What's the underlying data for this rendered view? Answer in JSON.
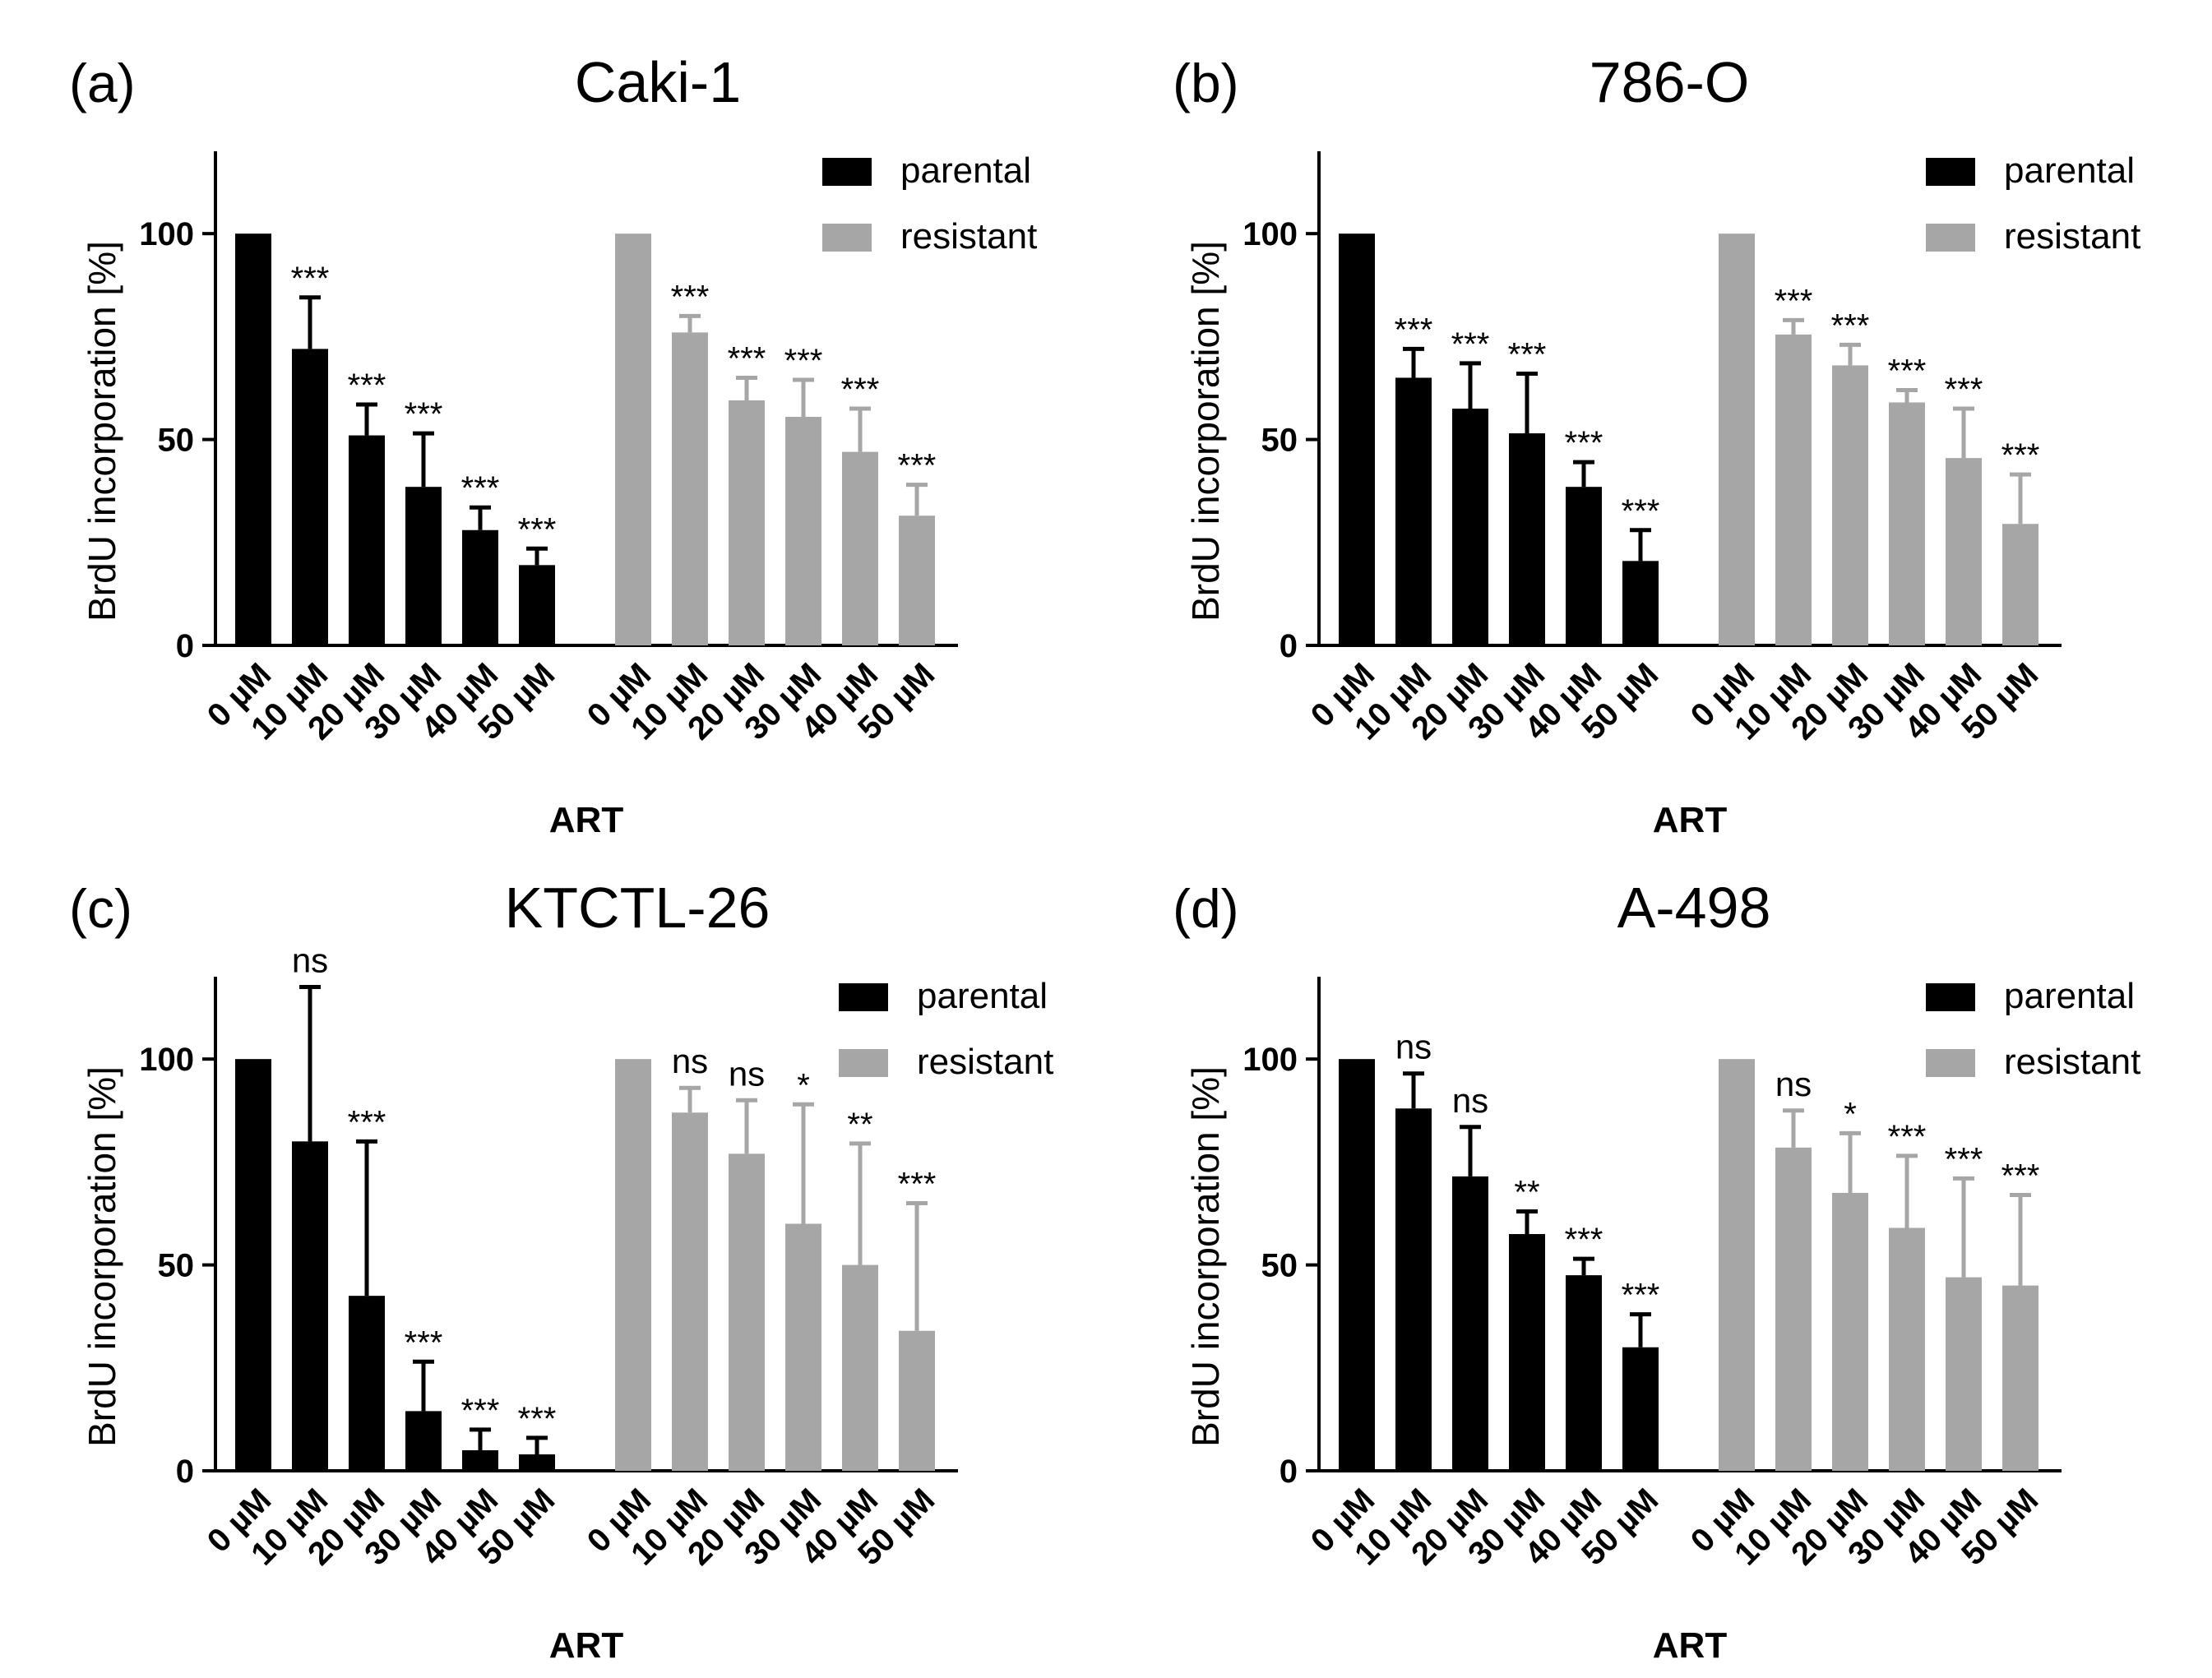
{
  "colors": {
    "parental": "#000000",
    "resistant": "#a6a6a6",
    "axis": "#000000",
    "background": "#ffffff"
  },
  "chart_data": [
    {
      "type": "bar",
      "panel_label": "(a)",
      "title": "Caki-1",
      "xlabel": "ART",
      "ylabel": "BrdU incorporation [%]",
      "ylim": [
        0,
        120
      ],
      "yticks": [
        "0",
        "50",
        "100"
      ],
      "categories": [
        "0 µM",
        "10 µM",
        "20 µM",
        "30 µM",
        "40 µM",
        "50 µM"
      ],
      "legend_position": "top-right",
      "series": [
        {
          "name": "parental",
          "values": [
            100,
            72,
            51,
            38.5,
            28,
            19.5
          ],
          "errors": [
            0,
            12.5,
            7.5,
            13,
            5.5,
            4
          ],
          "significance": [
            "",
            "***",
            "***",
            "***",
            "***",
            "***"
          ]
        },
        {
          "name": "resistant",
          "values": [
            100,
            76,
            59.5,
            55.5,
            47,
            31.5
          ],
          "errors": [
            0,
            4,
            5.5,
            9,
            10.5,
            7.5
          ],
          "significance": [
            "",
            "***",
            "***",
            "***",
            "***",
            "***"
          ]
        }
      ]
    },
    {
      "type": "bar",
      "panel_label": "(b)",
      "title": "786-O",
      "xlabel": "ART",
      "ylabel": "BrdU incorporation [%]",
      "ylim": [
        0,
        120
      ],
      "yticks": [
        "0",
        "50",
        "100"
      ],
      "categories": [
        "0 µM",
        "10 µM",
        "20 µM",
        "30 µM",
        "40 µM",
        "50 µM"
      ],
      "legend_position": "top-right",
      "series": [
        {
          "name": "parental",
          "values": [
            100,
            65,
            57.5,
            51.5,
            38.5,
            20.5
          ],
          "errors": [
            0,
            7,
            11,
            14.5,
            6,
            7.5
          ],
          "significance": [
            "",
            "***",
            "***",
            "***",
            "***",
            "***"
          ]
        },
        {
          "name": "resistant",
          "values": [
            100,
            75.5,
            68,
            59,
            45.5,
            29.5
          ],
          "errors": [
            0,
            3.5,
            5,
            3,
            12,
            12
          ],
          "significance": [
            "",
            "***",
            "***",
            "***",
            "***",
            "***"
          ]
        }
      ]
    },
    {
      "type": "bar",
      "panel_label": "(c)",
      "title": "KTCTL-26",
      "xlabel": "ART",
      "ylabel": "BrdU incorporation [%]",
      "ylim": [
        0,
        120
      ],
      "yticks": [
        "0",
        "50",
        "100"
      ],
      "categories": [
        "0 µM",
        "10 µM",
        "20 µM",
        "30 µM",
        "40 µM",
        "50 µM"
      ],
      "legend_position": "top-right",
      "series": [
        {
          "name": "parental",
          "values": [
            100,
            80,
            42.5,
            14.5,
            5,
            4
          ],
          "errors": [
            0,
            37.5,
            37.5,
            12,
            5,
            4
          ],
          "significance": [
            "",
            "ns",
            "***",
            "***",
            "***",
            "***"
          ]
        },
        {
          "name": "resistant",
          "values": [
            100,
            87,
            77,
            60,
            50,
            34
          ],
          "errors": [
            0,
            6,
            13,
            29,
            29.5,
            31
          ],
          "significance": [
            "",
            "ns",
            "ns",
            "*",
            "**",
            "***"
          ]
        }
      ]
    },
    {
      "type": "bar",
      "panel_label": "(d)",
      "title": "A-498",
      "xlabel": "ART",
      "ylabel": "BrdU incorporation [%]",
      "ylim": [
        0,
        120
      ],
      "yticks": [
        "0",
        "50",
        "100"
      ],
      "categories": [
        "0 µM",
        "10 µM",
        "20 µM",
        "30 µM",
        "40 µM",
        "50 µM"
      ],
      "legend_position": "top-right",
      "series": [
        {
          "name": "parental",
          "values": [
            100,
            88,
            71.5,
            57.5,
            47.5,
            30
          ],
          "errors": [
            0,
            8.5,
            12,
            5.5,
            4,
            8
          ],
          "significance": [
            "",
            "ns",
            "ns",
            "**",
            "***",
            "***"
          ]
        },
        {
          "name": "resistant",
          "values": [
            100,
            78.5,
            67.5,
            59,
            47,
            45
          ],
          "errors": [
            0,
            9,
            14.5,
            17.5,
            24,
            22
          ],
          "significance": [
            "",
            "ns",
            "*",
            "***",
            "***",
            "***"
          ]
        }
      ]
    }
  ]
}
